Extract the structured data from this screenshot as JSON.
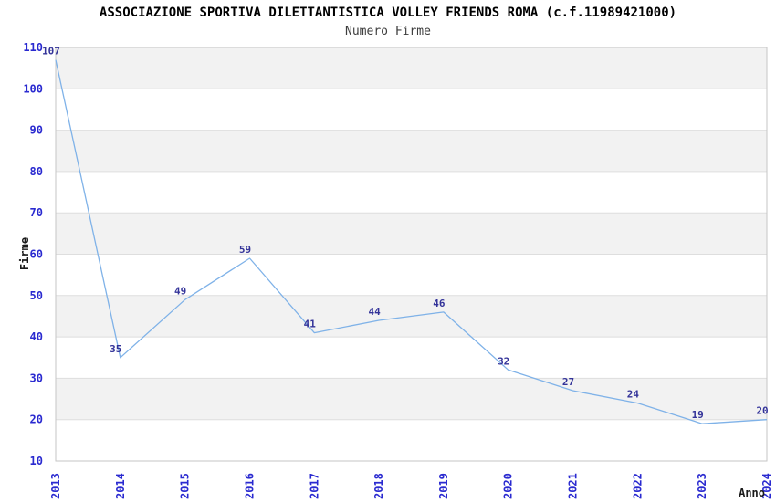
{
  "title": "ASSOCIAZIONE SPORTIVA DILETTANTISTICA VOLLEY FRIENDS ROMA (c.f.11989421000)",
  "subtitle": "Numero Firme",
  "chart_data": {
    "type": "line",
    "title": "ASSOCIAZIONE SPORTIVA DILETTANTISTICA VOLLEY FRIENDS ROMA (c.f.11989421000)",
    "subtitle": "Numero Firme",
    "xlabel": "Anno",
    "ylabel": "Firme",
    "categories": [
      "2013",
      "2014",
      "2015",
      "2016",
      "2017",
      "2018",
      "2019",
      "2020",
      "2021",
      "2022",
      "2023",
      "2024"
    ],
    "values": [
      107,
      35,
      49,
      59,
      41,
      44,
      46,
      32,
      27,
      24,
      19,
      20
    ],
    "ylim": [
      10,
      110
    ],
    "ytick_step": 10,
    "yticks": [
      10,
      20,
      30,
      40,
      50,
      60,
      70,
      80,
      90,
      100,
      110
    ],
    "grid": "horizontal-bands",
    "legend": "none",
    "point_labels_visible": true
  },
  "colors": {
    "line": "#7fb2e8",
    "tick_label": "#2a2ad0",
    "data_label": "#333399",
    "band_gray": "#f2f2f2",
    "band_white": "#ffffff",
    "gridline": "#dedede",
    "border": "#c6c6c6",
    "title": "#000000",
    "subtitle": "#3d3d3d",
    "axis_title": "#1a1a1a"
  }
}
